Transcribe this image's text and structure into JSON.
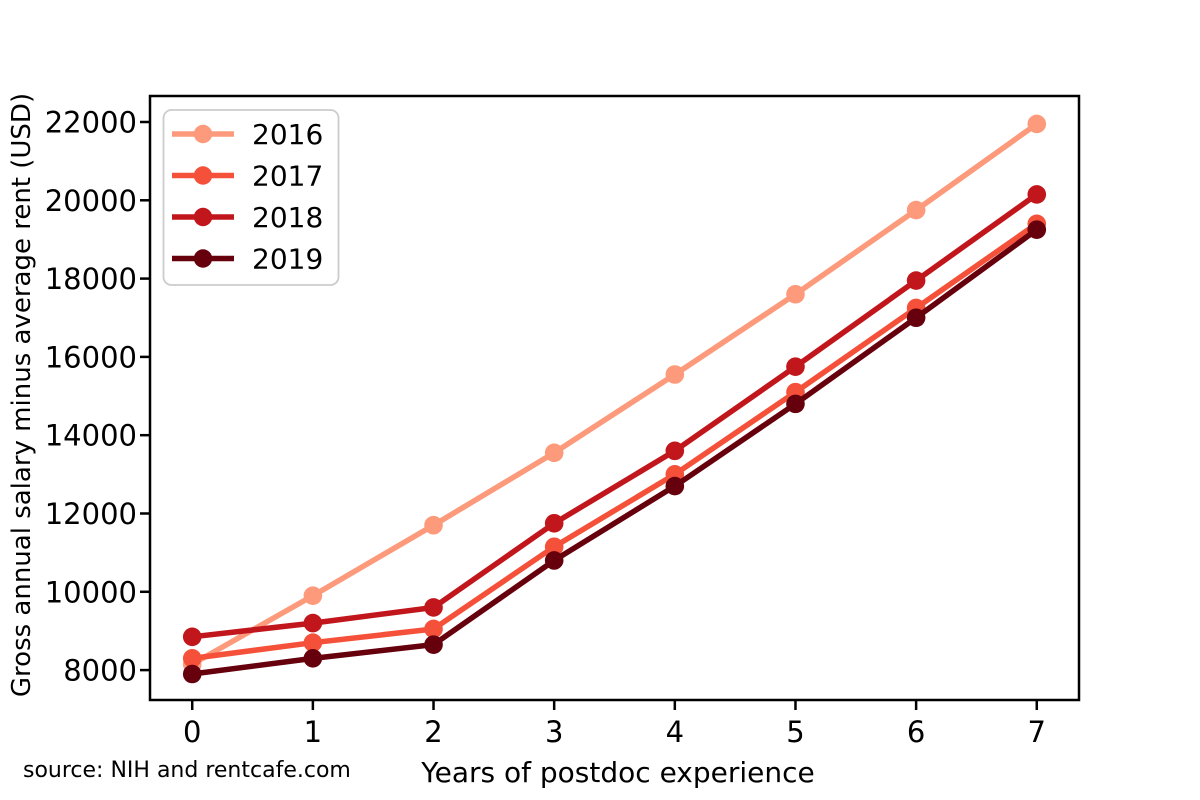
{
  "chart_data": {
    "type": "line",
    "title": "",
    "xlabel": "Years of postdoc experience",
    "ylabel": "Gross annual salary minus average rent (USD)",
    "source_note": "source: NIH and rentcafe.com",
    "x": [
      0,
      1,
      2,
      3,
      4,
      5,
      6,
      7
    ],
    "xtick_labels": [
      "0",
      "1",
      "2",
      "3",
      "4",
      "5",
      "6",
      "7"
    ],
    "ytick_values": [
      8000,
      10000,
      12000,
      14000,
      16000,
      18000,
      20000,
      22000
    ],
    "ytick_labels": [
      "8000",
      "10000",
      "12000",
      "14000",
      "16000",
      "18000",
      "20000",
      "22000"
    ],
    "xlim": [
      -0.35,
      7.35
    ],
    "ylim": [
      7236,
      22664
    ],
    "grid": false,
    "legend_position": "upper left",
    "legend_entries": [
      "2016",
      "2017",
      "2018",
      "2019"
    ],
    "series": [
      {
        "name": "2016",
        "color": "#fc9a7b",
        "values": [
          8150,
          9900,
          11700,
          13550,
          15550,
          17600,
          19750,
          21950
        ]
      },
      {
        "name": "2017",
        "color": "#f5513a",
        "values": [
          8300,
          8700,
          9050,
          11150,
          13000,
          15100,
          17250,
          19400
        ]
      },
      {
        "name": "2018",
        "color": "#c1161b",
        "values": [
          8850,
          9200,
          9600,
          11750,
          13600,
          15750,
          17950,
          20150
        ]
      },
      {
        "name": "2019",
        "color": "#67000d",
        "values": [
          7900,
          8300,
          8650,
          10800,
          12700,
          14800,
          17000,
          19250
        ]
      }
    ]
  }
}
